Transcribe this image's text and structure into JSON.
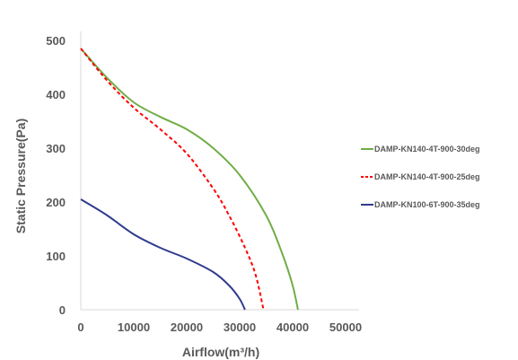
{
  "chart_data": {
    "type": "line",
    "title": "",
    "xlabel": "Airflow(m³/h)",
    "ylabel": "Static Pressure(Pa)",
    "xlim": [
      0,
      50000
    ],
    "ylim": [
      0,
      500
    ],
    "x_ticks": [
      "0",
      "10000",
      "20000",
      "30000",
      "40000",
      "50000"
    ],
    "y_ticks": [
      "0",
      "100",
      "200",
      "300",
      "400",
      "500"
    ],
    "grid": false,
    "legend_position": "right",
    "series": [
      {
        "name": "DAMP-KN140-4T-900-30deg",
        "color": "#70AD47",
        "style": "solid",
        "points": [
          [
            0,
            485
          ],
          [
            5000,
            430
          ],
          [
            10000,
            385
          ],
          [
            15000,
            358
          ],
          [
            20000,
            335
          ],
          [
            25000,
            300
          ],
          [
            30000,
            250
          ],
          [
            35000,
            175
          ],
          [
            38000,
            105
          ],
          [
            40000,
            45
          ],
          [
            41000,
            0
          ]
        ]
      },
      {
        "name": "DAMP-KN140-4T-900-25deg",
        "color": "#FF0000",
        "style": "dashed",
        "points": [
          [
            0,
            485
          ],
          [
            5000,
            425
          ],
          [
            10000,
            375
          ],
          [
            15000,
            335
          ],
          [
            20000,
            290
          ],
          [
            25000,
            225
          ],
          [
            28000,
            175
          ],
          [
            31000,
            115
          ],
          [
            33000,
            65
          ],
          [
            34500,
            0
          ]
        ]
      },
      {
        "name": "DAMP-KN100-6T-900-35deg",
        "color": "#2F3C8F",
        "style": "solid",
        "points": [
          [
            0,
            205
          ],
          [
            5000,
            175
          ],
          [
            10000,
            140
          ],
          [
            15000,
            115
          ],
          [
            20000,
            95
          ],
          [
            25000,
            70
          ],
          [
            28000,
            45
          ],
          [
            30000,
            20
          ],
          [
            31000,
            0
          ]
        ]
      }
    ]
  }
}
